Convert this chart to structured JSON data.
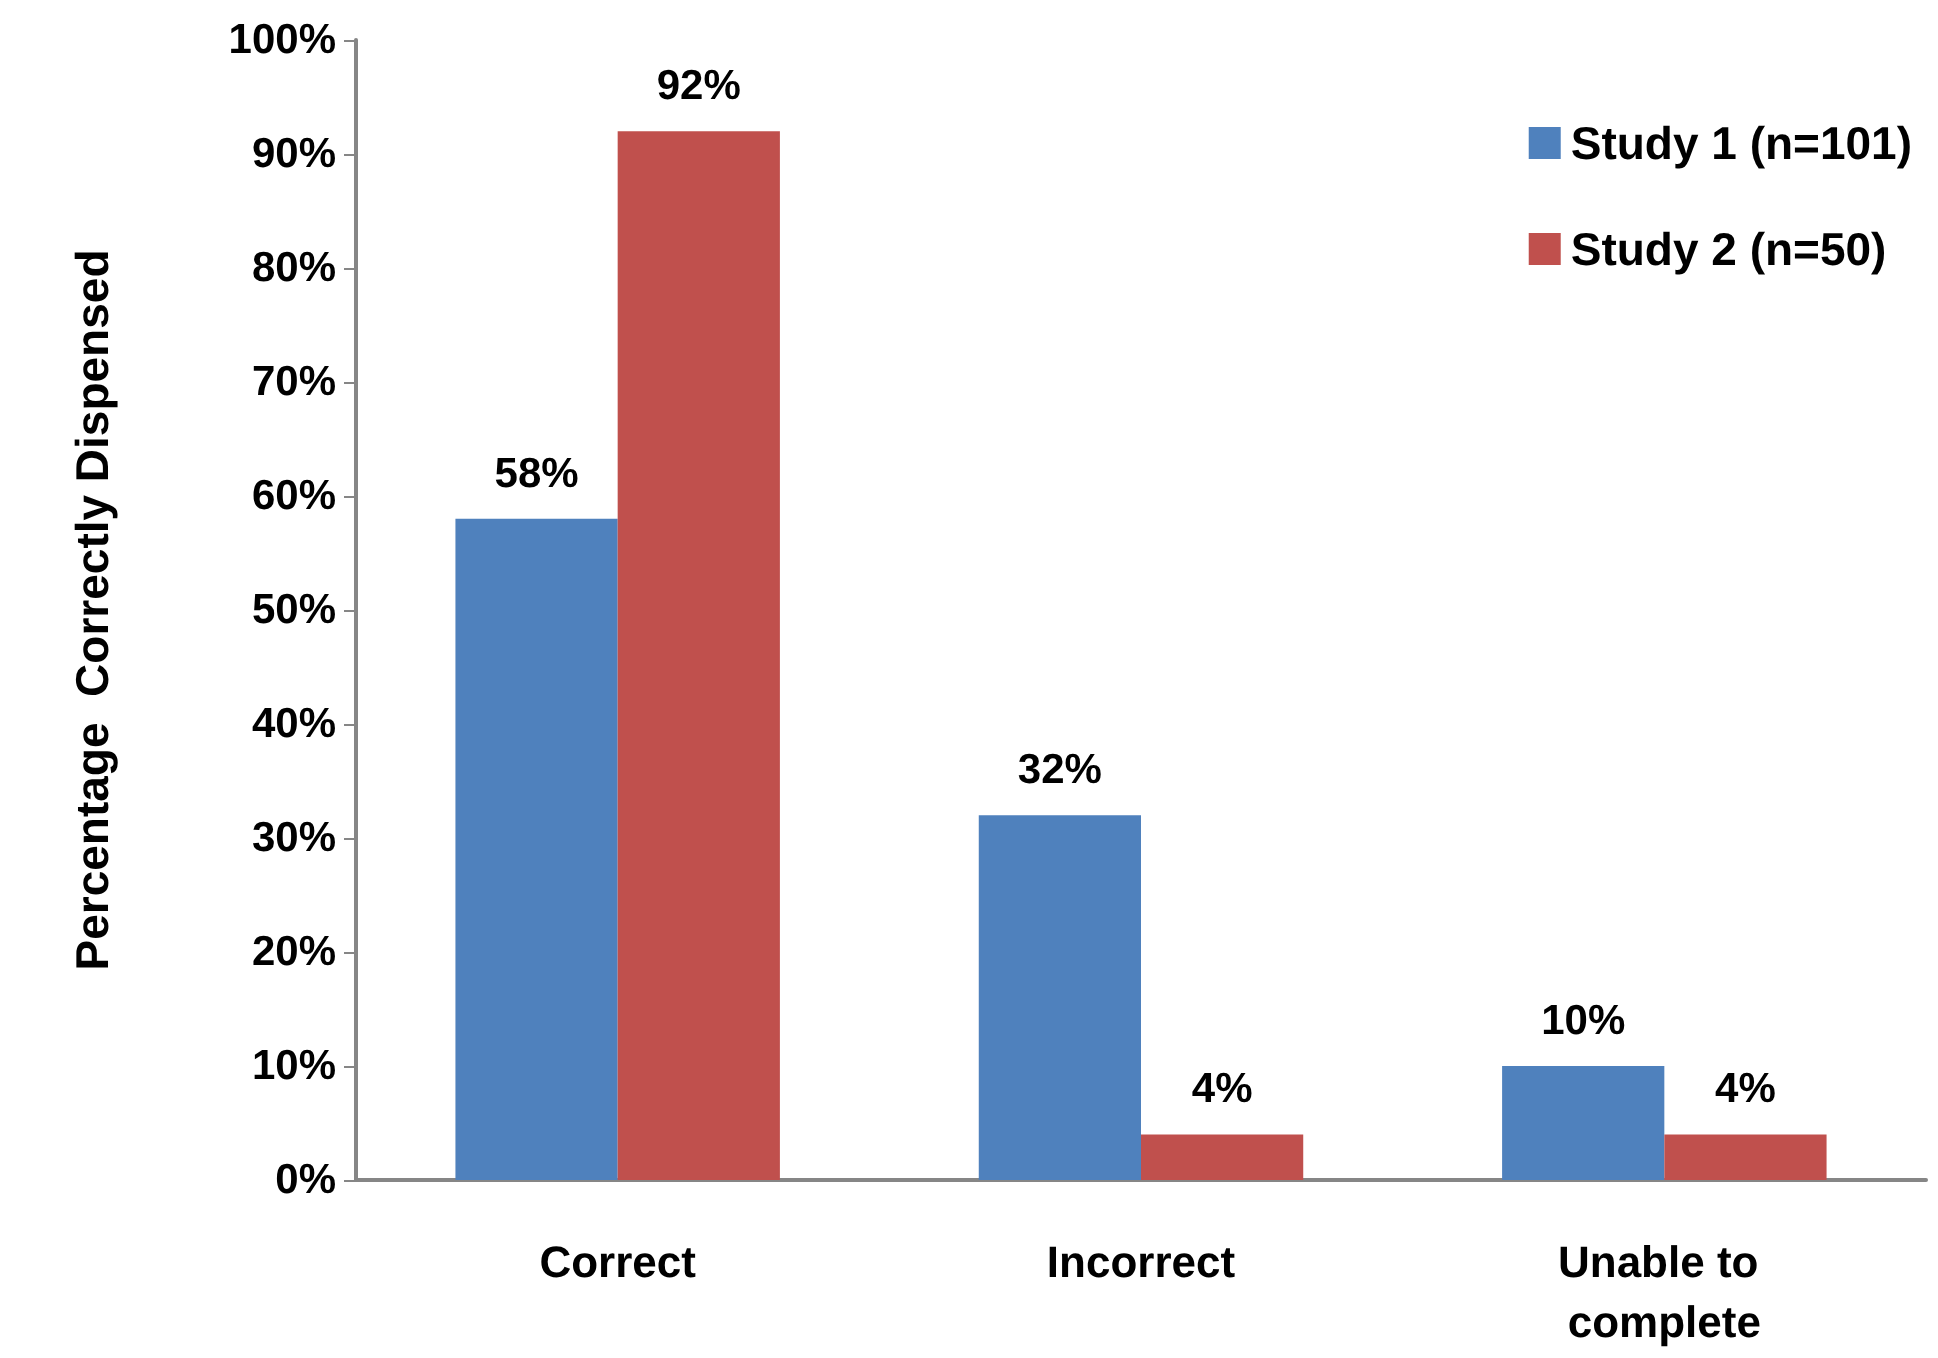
{
  "chart_data": {
    "type": "bar",
    "ylabel": "Percentage  Correctly Dispensed",
    "categories": [
      "Correct",
      "Incorrect",
      "Unable to complete"
    ],
    "series": [
      {
        "name": "Study 1 (n=101)",
        "color": "#4f81bd",
        "values": [
          58,
          32,
          10
        ],
        "value_labels": [
          "58%",
          "32%",
          "10%"
        ]
      },
      {
        "name": "Study 2 (n=50)",
        "color": "#c0504d",
        "values": [
          92,
          4,
          4
        ],
        "value_labels": [
          "92%",
          "4%",
          "4%"
        ]
      }
    ],
    "ylim": [
      0,
      100
    ],
    "yticks": [
      {
        "value": 0,
        "label": "0%"
      },
      {
        "value": 10,
        "label": "10%"
      },
      {
        "value": 20,
        "label": "20%"
      },
      {
        "value": 30,
        "label": "30%"
      },
      {
        "value": 40,
        "label": "40%"
      },
      {
        "value": 50,
        "label": "50%"
      },
      {
        "value": 60,
        "label": "60%"
      },
      {
        "value": 70,
        "label": "70%"
      },
      {
        "value": 80,
        "label": "80%"
      },
      {
        "value": 90,
        "label": "90%"
      },
      {
        "value": 100,
        "label": "100%"
      }
    ],
    "grid": false,
    "legend": "top right"
  }
}
